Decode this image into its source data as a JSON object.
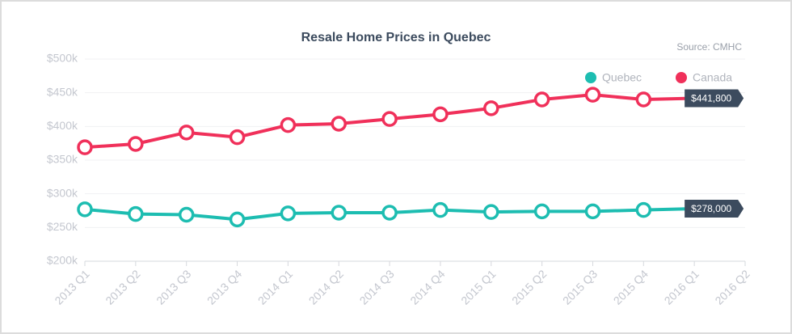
{
  "chart_data": {
    "type": "line",
    "title": "Resale Home Prices in Quebec",
    "source": "Source: CMHC",
    "categories": [
      "2013 Q1",
      "2013 Q2",
      "2013 Q3",
      "2013 Q4",
      "2014 Q1",
      "2014 Q2",
      "2014 Q3",
      "2014 Q4",
      "2015 Q1",
      "2015 Q2",
      "2015 Q3",
      "2015 Q4",
      "2016 Q1",
      "2016 Q2"
    ],
    "series": [
      {
        "name": "Quebec",
        "color": "#1dbdb1",
        "values": [
          277000,
          270000,
          269000,
          262000,
          271000,
          272000,
          272000,
          276000,
          273000,
          274000,
          274000,
          276000,
          278000,
          null
        ],
        "value_labels": [
          null,
          null,
          null,
          null,
          null,
          null,
          null,
          null,
          null,
          null,
          null,
          null,
          "$278,000",
          null
        ]
      },
      {
        "name": "Canada",
        "color": "#f0305a",
        "values": [
          369000,
          374000,
          391000,
          384000,
          402000,
          404000,
          411000,
          418000,
          427000,
          440000,
          447000,
          440000,
          441800,
          null
        ],
        "value_labels": [
          null,
          null,
          null,
          null,
          null,
          null,
          null,
          null,
          null,
          null,
          null,
          null,
          "$441,800",
          null
        ]
      }
    ],
    "ylim": [
      200000,
      500000
    ],
    "yticks": [
      {
        "value": 200000,
        "label": "$200k"
      },
      {
        "value": 250000,
        "label": "$250k"
      },
      {
        "value": 300000,
        "label": "$300k"
      },
      {
        "value": 350000,
        "label": "$350k"
      },
      {
        "value": 400000,
        "label": "$400k"
      },
      {
        "value": 450000,
        "label": "$450k"
      },
      {
        "value": 500000,
        "label": "$500k"
      }
    ],
    "grid": true,
    "legend": "top-right"
  }
}
